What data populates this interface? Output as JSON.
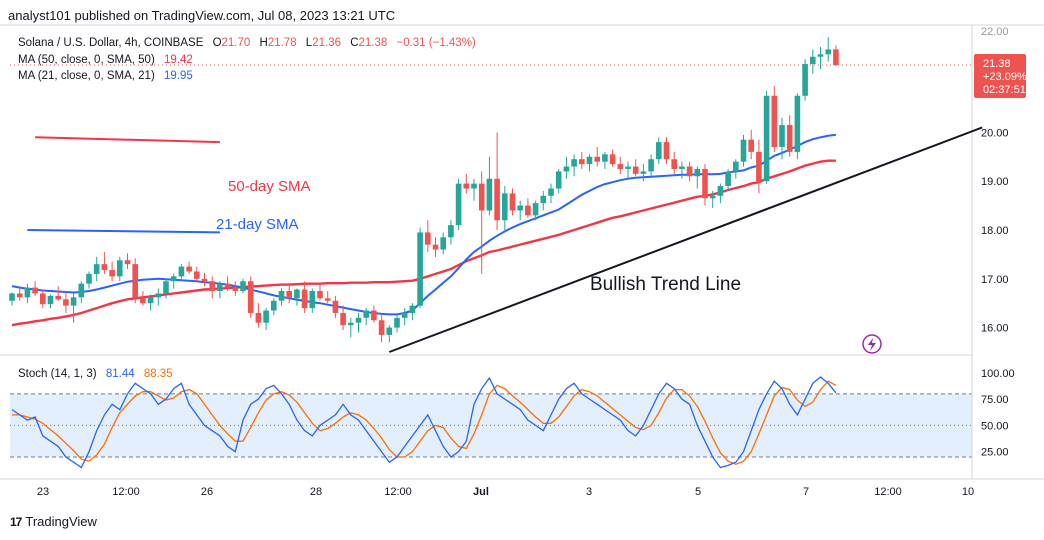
{
  "header": {
    "publish_line": "analyst101 published on TradingView.com, Jul 08, 2023 13:21 UTC"
  },
  "footer": {
    "brand": "TradingView",
    "logo_glyph": "17"
  },
  "colors": {
    "up": "#26a69a",
    "down": "#ef5350",
    "sma50": "#f23645",
    "sma21": "#2962ff",
    "stoch_k": "#2962ff",
    "stoch_d": "#ff6d00",
    "trend": "#131722",
    "band": "#e3effd"
  },
  "chart_data": {
    "type": "candlestick",
    "symbol": "Solana / U.S. Dollar, 4h, COINBASE",
    "ohlc": {
      "o_label": "O",
      "o": "21.70",
      "h_label": "H",
      "h": "21.78",
      "l_label": "L",
      "l": "21.36",
      "c_label": "C",
      "c": "21.38",
      "change": "−0.31 (−1.43%)"
    },
    "indicators": [
      {
        "label": "MA (50, close, 0, SMA, 50)",
        "value": "19.42",
        "color": "#f23645"
      },
      {
        "label": "MA (21, close, 0, SMA, 21)",
        "value": "19.95",
        "color": "#2962ff"
      }
    ],
    "price_axis": {
      "ylim": [
        15.5,
        22.2
      ],
      "ticks": [
        "16.00",
        "17.00",
        "18.00",
        "19.00",
        "20.00"
      ],
      "top_tick_partial": "22.00"
    },
    "last_price": {
      "price": "21.38",
      "change_pct": "+23.09%",
      "countdown": "02:37:51",
      "value": 21.38
    },
    "x_axis": {
      "labels": [
        "23",
        "12:00",
        "26",
        "28",
        "12:00",
        "Jul",
        "3",
        "5",
        "7",
        "12:00",
        "10"
      ],
      "bold": [
        "Jul"
      ]
    },
    "candles": [
      [
        16.55,
        16.72,
        16.45,
        16.7
      ],
      [
        16.7,
        16.85,
        16.55,
        16.62
      ],
      [
        16.62,
        16.9,
        16.5,
        16.82
      ],
      [
        16.82,
        16.95,
        16.65,
        16.7
      ],
      [
        16.7,
        16.78,
        16.4,
        16.48
      ],
      [
        16.48,
        16.68,
        16.4,
        16.65
      ],
      [
        16.65,
        16.85,
        16.55,
        16.58
      ],
      [
        16.58,
        16.75,
        16.3,
        16.45
      ],
      [
        16.45,
        16.7,
        16.1,
        16.62
      ],
      [
        16.62,
        16.95,
        16.5,
        16.9
      ],
      [
        16.9,
        17.15,
        16.8,
        17.1
      ],
      [
        17.1,
        17.45,
        16.95,
        17.3
      ],
      [
        17.3,
        17.55,
        17.1,
        17.18
      ],
      [
        17.18,
        17.35,
        16.95,
        17.05
      ],
      [
        17.05,
        17.45,
        16.95,
        17.38
      ],
      [
        17.38,
        17.52,
        17.2,
        17.3
      ],
      [
        17.3,
        17.42,
        16.5,
        16.6
      ],
      [
        16.6,
        16.75,
        16.45,
        16.5
      ],
      [
        16.5,
        16.68,
        16.35,
        16.62
      ],
      [
        16.62,
        16.8,
        16.45,
        16.7
      ],
      [
        16.7,
        17.0,
        16.6,
        16.95
      ],
      [
        16.95,
        17.1,
        16.8,
        17.05
      ],
      [
        17.05,
        17.3,
        16.95,
        17.25
      ],
      [
        17.25,
        17.35,
        17.1,
        17.15
      ],
      [
        17.15,
        17.25,
        16.95,
        17.0
      ],
      [
        17.0,
        17.12,
        16.85,
        16.95
      ],
      [
        16.95,
        17.05,
        16.6,
        16.75
      ],
      [
        16.75,
        16.95,
        16.6,
        16.9
      ],
      [
        16.9,
        17.05,
        16.75,
        16.82
      ],
      [
        16.82,
        16.95,
        16.65,
        16.75
      ],
      [
        16.75,
        17.0,
        16.7,
        16.95
      ],
      [
        16.95,
        17.05,
        16.2,
        16.3
      ],
      [
        16.3,
        16.5,
        16.0,
        16.1
      ],
      [
        16.1,
        16.4,
        15.95,
        16.35
      ],
      [
        16.35,
        16.6,
        16.25,
        16.55
      ],
      [
        16.55,
        16.8,
        16.45,
        16.75
      ],
      [
        16.75,
        16.9,
        16.5,
        16.6
      ],
      [
        16.6,
        16.8,
        16.45,
        16.78
      ],
      [
        16.78,
        16.95,
        16.3,
        16.4
      ],
      [
        16.4,
        16.8,
        16.3,
        16.75
      ],
      [
        16.75,
        16.9,
        16.55,
        16.6
      ],
      [
        16.6,
        16.75,
        16.5,
        16.55
      ],
      [
        16.55,
        16.65,
        16.2,
        16.3
      ],
      [
        16.3,
        16.45,
        15.95,
        16.05
      ],
      [
        16.05,
        16.2,
        15.8,
        16.1
      ],
      [
        16.1,
        16.3,
        15.9,
        16.2
      ],
      [
        16.2,
        16.4,
        16.05,
        16.35
      ],
      [
        16.35,
        16.45,
        16.1,
        16.15
      ],
      [
        16.15,
        16.25,
        15.7,
        15.85
      ],
      [
        15.85,
        16.05,
        15.7,
        16.0
      ],
      [
        16.0,
        16.25,
        15.9,
        16.2
      ],
      [
        16.2,
        16.4,
        16.05,
        16.3
      ],
      [
        16.3,
        16.5,
        16.15,
        16.45
      ],
      [
        16.45,
        18.05,
        16.4,
        17.95
      ],
      [
        17.95,
        18.2,
        17.55,
        17.7
      ],
      [
        17.7,
        17.85,
        17.45,
        17.6
      ],
      [
        17.6,
        17.95,
        17.5,
        17.85
      ],
      [
        17.85,
        18.2,
        17.7,
        18.1
      ],
      [
        18.1,
        19.05,
        18.0,
        18.95
      ],
      [
        18.95,
        19.15,
        18.75,
        18.85
      ],
      [
        18.85,
        19.05,
        18.6,
        18.95
      ],
      [
        18.95,
        19.2,
        17.1,
        18.4
      ],
      [
        18.4,
        19.5,
        18.3,
        19.05
      ],
      [
        19.05,
        20.0,
        18.0,
        18.2
      ],
      [
        18.2,
        18.9,
        18.0,
        18.75
      ],
      [
        18.75,
        18.85,
        18.3,
        18.4
      ],
      [
        18.4,
        18.6,
        18.2,
        18.5
      ],
      [
        18.5,
        18.65,
        18.25,
        18.3
      ],
      [
        18.3,
        18.6,
        18.2,
        18.55
      ],
      [
        18.55,
        18.8,
        18.4,
        18.7
      ],
      [
        18.7,
        18.95,
        18.55,
        18.85
      ],
      [
        18.85,
        19.25,
        18.75,
        19.2
      ],
      [
        19.2,
        19.5,
        19.05,
        19.3
      ],
      [
        19.3,
        19.55,
        19.1,
        19.45
      ],
      [
        19.45,
        19.6,
        19.25,
        19.35
      ],
      [
        19.35,
        19.55,
        19.2,
        19.5
      ],
      [
        19.5,
        19.7,
        19.3,
        19.4
      ],
      [
        19.4,
        19.6,
        19.25,
        19.55
      ],
      [
        19.55,
        19.65,
        19.3,
        19.35
      ],
      [
        19.35,
        19.5,
        19.15,
        19.25
      ],
      [
        19.25,
        19.4,
        19.05,
        19.3
      ],
      [
        19.3,
        19.45,
        19.1,
        19.15
      ],
      [
        19.15,
        19.35,
        19.0,
        19.2
      ],
      [
        19.2,
        19.55,
        19.1,
        19.45
      ],
      [
        19.45,
        19.9,
        19.35,
        19.8
      ],
      [
        19.8,
        19.9,
        19.35,
        19.45
      ],
      [
        19.45,
        19.6,
        19.15,
        19.25
      ],
      [
        19.25,
        19.4,
        19.05,
        19.3
      ],
      [
        19.3,
        19.4,
        19.0,
        19.1
      ],
      [
        19.1,
        19.3,
        18.85,
        19.25
      ],
      [
        19.25,
        19.35,
        18.5,
        18.65
      ],
      [
        18.65,
        18.8,
        18.45,
        18.7
      ],
      [
        18.7,
        18.95,
        18.55,
        18.9
      ],
      [
        18.9,
        19.25,
        18.8,
        19.2
      ],
      [
        19.2,
        19.45,
        19.05,
        19.4
      ],
      [
        19.4,
        19.95,
        19.3,
        19.85
      ],
      [
        19.85,
        20.05,
        19.45,
        19.6
      ],
      [
        19.6,
        19.85,
        18.75,
        19.0
      ],
      [
        19.0,
        20.85,
        18.95,
        20.75
      ],
      [
        20.75,
        20.95,
        19.6,
        19.7
      ],
      [
        19.7,
        20.3,
        19.45,
        20.15
      ],
      [
        20.15,
        20.35,
        19.5,
        19.6
      ],
      [
        19.6,
        20.8,
        19.45,
        20.75
      ],
      [
        20.75,
        21.5,
        20.65,
        21.4
      ],
      [
        21.4,
        21.7,
        21.2,
        21.55
      ],
      [
        21.55,
        21.75,
        21.3,
        21.6
      ],
      [
        21.6,
        21.95,
        21.45,
        21.7
      ],
      [
        21.7,
        21.78,
        21.36,
        21.38
      ]
    ],
    "sma50": [
      16.05,
      16.08,
      16.1,
      16.13,
      16.15,
      16.18,
      16.2,
      16.23,
      16.26,
      16.3,
      16.35,
      16.4,
      16.45,
      16.5,
      16.54,
      16.58,
      16.6,
      16.62,
      16.64,
      16.66,
      16.68,
      16.7,
      16.72,
      16.74,
      16.76,
      16.78,
      16.79,
      16.8,
      16.81,
      16.82,
      16.83,
      16.84,
      16.85,
      16.86,
      16.87,
      16.88,
      16.88,
      16.89,
      16.9,
      16.9,
      16.9,
      16.91,
      16.91,
      16.91,
      16.92,
      16.92,
      16.92,
      16.93,
      16.93,
      16.93,
      16.94,
      16.95,
      16.96,
      17.0,
      17.05,
      17.1,
      17.15,
      17.2,
      17.28,
      17.36,
      17.42,
      17.48,
      17.55,
      17.58,
      17.62,
      17.66,
      17.7,
      17.74,
      17.78,
      17.82,
      17.86,
      17.9,
      17.95,
      18.0,
      18.05,
      18.1,
      18.15,
      18.2,
      18.25,
      18.28,
      18.32,
      18.36,
      18.4,
      18.44,
      18.48,
      18.52,
      18.56,
      18.6,
      18.64,
      18.68,
      18.7,
      18.73,
      18.77,
      18.82,
      18.86,
      18.9,
      18.95,
      18.98,
      19.05,
      19.1,
      19.15,
      19.2,
      19.26,
      19.32,
      19.36,
      19.4,
      19.42,
      19.42
    ],
    "sma21": [
      16.85,
      16.82,
      16.8,
      16.78,
      16.76,
      16.75,
      16.74,
      16.73,
      16.72,
      16.73,
      16.75,
      16.78,
      16.82,
      16.86,
      16.9,
      16.94,
      16.96,
      16.98,
      16.99,
      17.0,
      16.99,
      16.98,
      16.97,
      16.96,
      16.95,
      16.93,
      16.92,
      16.9,
      16.88,
      16.85,
      16.82,
      16.78,
      16.74,
      16.7,
      16.66,
      16.63,
      16.6,
      16.57,
      16.55,
      16.52,
      16.5,
      16.47,
      16.44,
      16.41,
      16.38,
      16.35,
      16.32,
      16.3,
      16.28,
      16.27,
      16.27,
      16.3,
      16.35,
      16.5,
      16.65,
      16.78,
      16.92,
      17.05,
      17.22,
      17.4,
      17.55,
      17.66,
      17.78,
      17.88,
      17.97,
      18.05,
      18.12,
      18.18,
      18.24,
      18.3,
      18.36,
      18.42,
      18.52,
      18.62,
      18.72,
      18.8,
      18.88,
      18.94,
      18.98,
      19.02,
      19.05,
      19.07,
      19.08,
      19.09,
      19.1,
      19.11,
      19.12,
      19.13,
      19.13,
      19.14,
      19.14,
      19.14,
      19.15,
      19.18,
      19.2,
      19.22,
      19.28,
      19.32,
      19.42,
      19.52,
      19.58,
      19.65,
      19.72,
      19.8,
      19.86,
      19.9,
      19.93,
      19.95
    ],
    "trend_line": {
      "label": "Bullish Trend Line",
      "from": {
        "index": 49,
        "price": 15.5
      },
      "to": {
        "index": 126,
        "price": 20.1
      }
    },
    "annotations": [
      {
        "label": "50-day SMA",
        "color": "#f23645",
        "price_start": 19.9,
        "price_end": 19.8,
        "index_start": 3,
        "index_end": 27
      },
      {
        "label": "21-day SMA",
        "color": "#2962ff",
        "price_start": 18.0,
        "price_end": 17.95,
        "index_start": 2,
        "index_end": 27
      }
    ],
    "stochastic": {
      "label": "Stoch (14, 1, 3)",
      "k_value": "81.44",
      "d_value": "88.35",
      "ylim": [
        0,
        115
      ],
      "ticks": [
        "100.00",
        "75.00",
        "50.00",
        "25.00"
      ],
      "band": [
        20,
        80
      ],
      "k": [
        65,
        60,
        55,
        58,
        40,
        35,
        30,
        20,
        15,
        10,
        25,
        45,
        60,
        70,
        65,
        80,
        90,
        85,
        80,
        70,
        75,
        85,
        90,
        70,
        60,
        50,
        45,
        40,
        30,
        25,
        55,
        70,
        75,
        85,
        88,
        80,
        70,
        55,
        45,
        40,
        50,
        55,
        60,
        70,
        60,
        55,
        45,
        35,
        25,
        15,
        20,
        30,
        40,
        50,
        60,
        45,
        30,
        20,
        25,
        35,
        70,
        85,
        95,
        80,
        75,
        70,
        65,
        55,
        50,
        45,
        60,
        75,
        85,
        90,
        80,
        75,
        70,
        65,
        60,
        55,
        45,
        40,
        50,
        65,
        80,
        90,
        85,
        75,
        70,
        50,
        35,
        20,
        10,
        12,
        15,
        25,
        45,
        65,
        80,
        92,
        85,
        70,
        60,
        75,
        90,
        96,
        90,
        81
      ],
      "d": [
        60,
        60,
        58,
        56,
        52,
        46,
        40,
        33,
        26,
        18,
        16,
        22,
        32,
        48,
        62,
        70,
        78,
        82,
        82,
        78,
        74,
        76,
        82,
        84,
        80,
        70,
        60,
        50,
        42,
        35,
        35,
        48,
        62,
        74,
        80,
        82,
        79,
        72,
        62,
        52,
        45,
        47,
        52,
        58,
        62,
        60,
        55,
        47,
        38,
        27,
        20,
        20,
        25,
        35,
        45,
        50,
        48,
        38,
        30,
        28,
        42,
        60,
        80,
        88,
        85,
        78,
        72,
        65,
        58,
        52,
        52,
        58,
        68,
        78,
        84,
        82,
        78,
        72,
        66,
        60,
        54,
        48,
        46,
        50,
        62,
        76,
        84,
        84,
        78,
        68,
        54,
        38,
        24,
        16,
        13,
        16,
        25,
        42,
        60,
        78,
        86,
        84,
        74,
        68,
        72,
        84,
        92,
        88
      ]
    }
  }
}
